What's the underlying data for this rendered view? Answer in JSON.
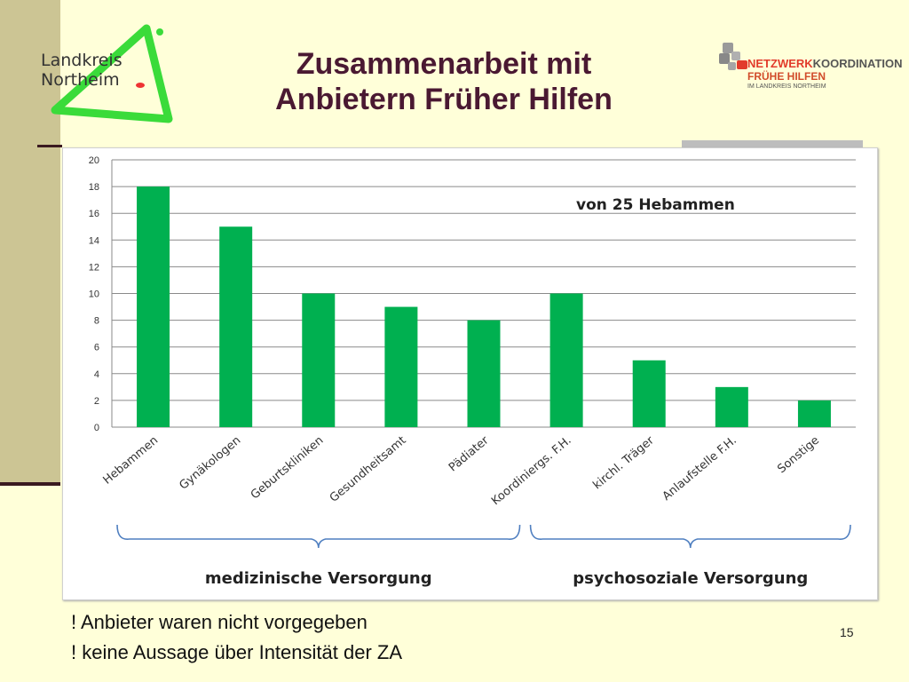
{
  "header": {
    "title_line1": "Zusammenarbeit mit",
    "title_line2": "Anbietern Früher Hilfen",
    "logo_left_line1": "Landkreis",
    "logo_left_line2": "Northeim",
    "logo_right_part1": "NETZWERK",
    "logo_right_part2": "KOORDINATION",
    "logo_right_line2": "FRÜHE HILFEN",
    "logo_right_line3": "IM LANDKREIS NORTHEIM"
  },
  "chart_data": {
    "type": "bar",
    "categories": [
      "Hebammen",
      "Gynäkologen",
      "Geburtskliniken",
      "Gesundheitsamt",
      "Pädiater",
      "Koordiniergs. F.H.",
      "kirchl. Träger",
      "Anlaufstelle F.H.",
      "Sonstige"
    ],
    "values": [
      18,
      15,
      10,
      9,
      8,
      10,
      5,
      3,
      2
    ],
    "annotation": "von 25 Hebammen",
    "ylim": [
      0,
      20
    ],
    "yticks": [
      0,
      2,
      4,
      6,
      8,
      10,
      12,
      14,
      16,
      18,
      20
    ],
    "grid": true,
    "bar_color": "#00B050",
    "groups": [
      {
        "label": "medizinische  Versorgung",
        "from": 0,
        "to": 4
      },
      {
        "label": "psychosoziale  Versorgung",
        "from": 5,
        "to": 8
      }
    ]
  },
  "notes": {
    "line1": "! Anbieter waren nicht vorgegeben",
    "line2": "! keine Aussage über Intensität der ZA"
  },
  "footer": {
    "page_number": "15"
  }
}
